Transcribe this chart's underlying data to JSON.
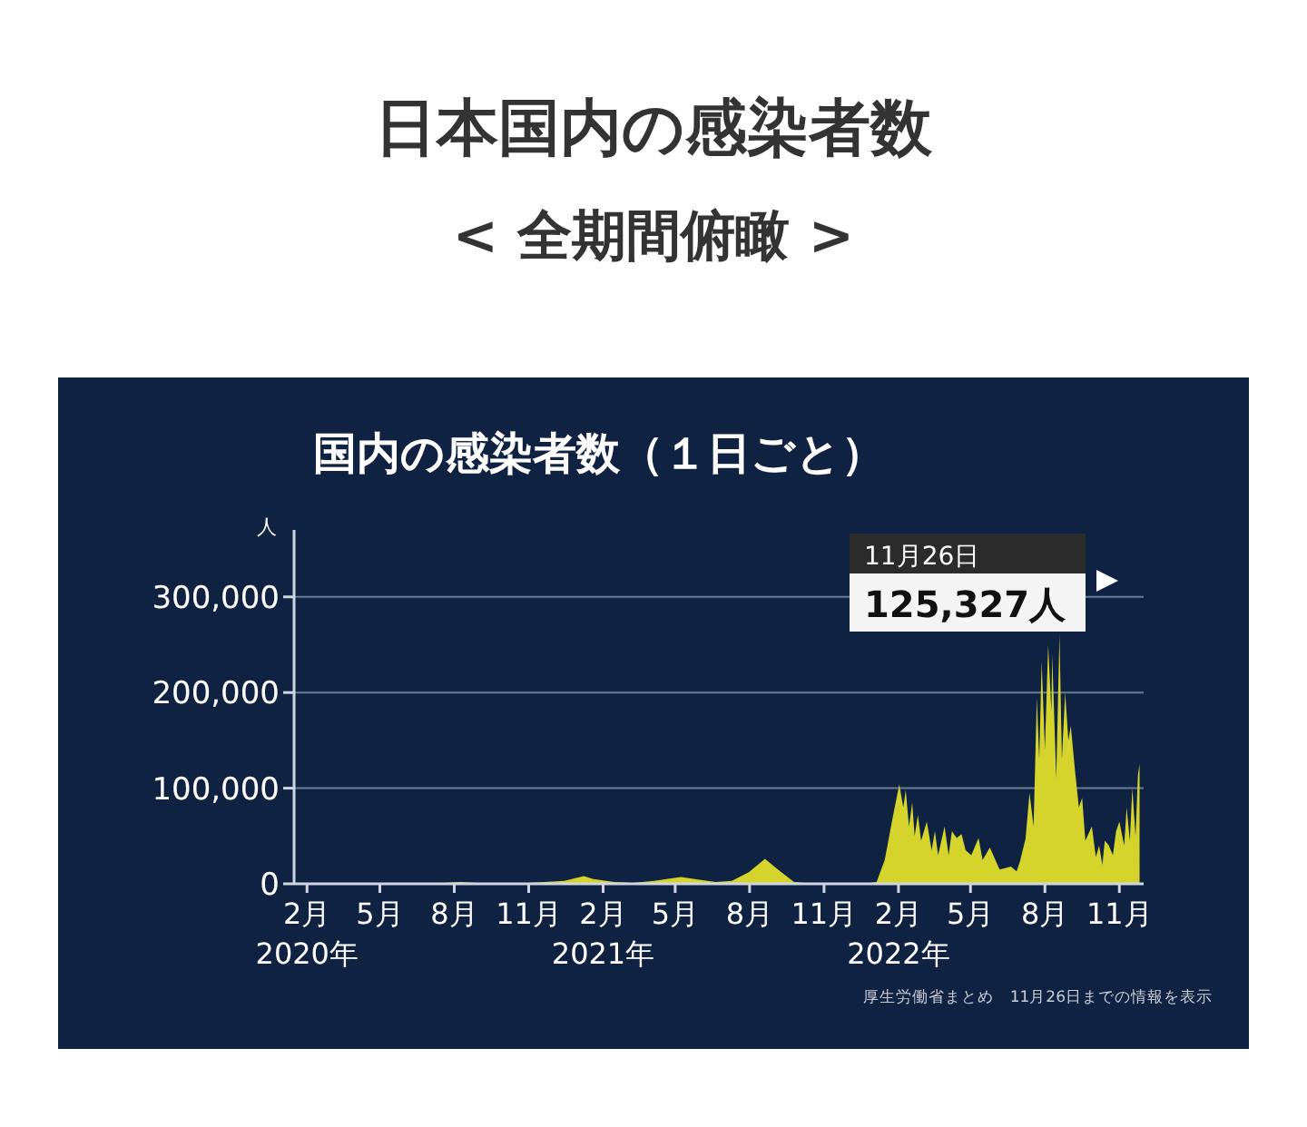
{
  "chart_data": {
    "type": "area",
    "title": "日本国内の感染者数",
    "subtitle": "< 全期間俯瞰 >",
    "ylabel": "人",
    "annotations": [
      "国内の感染者数（１日ごと）",
      "11月26日",
      "125,327人",
      "厚生労働省まとめ　11月26日までの情報を表示"
    ],
    "color": "#d4d42c",
    "grid": "y",
    "xlim": [
      "2020-01-16",
      "2022-12-01"
    ],
    "ylim": [
      0,
      370000
    ],
    "yticks": [
      {
        "value": 0,
        "label": "0"
      },
      {
        "value": 100000,
        "label": "100,000"
      },
      {
        "value": 200000,
        "label": "200,000"
      },
      {
        "value": 300000,
        "label": "300,000"
      }
    ],
    "xticks": [
      {
        "value": "2020-02-01",
        "label": "2月\n2020年"
      },
      {
        "value": "2020-05-01",
        "label": "5月"
      },
      {
        "value": "2020-08-01",
        "label": "8月"
      },
      {
        "value": "2020-11-01",
        "label": "11月"
      },
      {
        "value": "2021-02-01",
        "label": "2月\n2021年"
      },
      {
        "value": "2021-05-01",
        "label": "5月"
      },
      {
        "value": "2021-08-01",
        "label": "8月"
      },
      {
        "value": "2021-11-01",
        "label": "11月"
      },
      {
        "value": "2022-02-01",
        "label": "2月\n2022年"
      },
      {
        "value": "2022-05-01",
        "label": "5月"
      },
      {
        "value": "2022-08-01",
        "label": "8月"
      },
      {
        "value": "2022-11-01",
        "label": "11月"
      }
    ],
    "x": [
      "2020-01-16",
      "2020-03-31",
      "2020-04-11",
      "2020-05-15",
      "2020-06-30",
      "2020-08-07",
      "2020-09-20",
      "2020-11-01",
      "2020-11-20",
      "2020-12-15",
      "2021-01-08",
      "2021-01-20",
      "2021-02-15",
      "2021-03-10",
      "2021-04-05",
      "2021-05-08",
      "2021-05-25",
      "2021-06-20",
      "2021-07-10",
      "2021-07-31",
      "2021-08-20",
      "2021-09-05",
      "2021-09-25",
      "2021-10-20",
      "2021-12-20",
      "2022-01-05",
      "2022-01-15",
      "2022-01-25",
      "2022-02-02",
      "2022-02-07",
      "2022-02-10",
      "2022-02-14",
      "2022-02-18",
      "2022-02-21",
      "2022-02-25",
      "2022-03-01",
      "2022-03-08",
      "2022-03-14",
      "2022-03-18",
      "2022-03-22",
      "2022-03-30",
      "2022-04-04",
      "2022-04-08",
      "2022-04-14",
      "2022-04-20",
      "2022-04-25",
      "2022-05-02",
      "2022-05-11",
      "2022-05-16",
      "2022-05-25",
      "2022-06-06",
      "2022-06-20",
      "2022-06-27",
      "2022-07-01",
      "2022-07-08",
      "2022-07-13",
      "2022-07-18",
      "2022-07-22",
      "2022-07-25",
      "2022-07-28",
      "2022-08-01",
      "2022-08-05",
      "2022-08-09",
      "2022-08-10",
      "2022-08-15",
      "2022-08-19",
      "2022-08-22",
      "2022-08-26",
      "2022-08-30",
      "2022-09-02",
      "2022-09-07",
      "2022-09-12",
      "2022-09-16",
      "2022-09-20",
      "2022-09-28",
      "2022-10-03",
      "2022-10-07",
      "2022-10-11",
      "2022-10-14",
      "2022-10-19",
      "2022-10-24",
      "2022-10-28",
      "2022-11-01",
      "2022-11-07",
      "2022-11-10",
      "2022-11-14",
      "2022-11-17",
      "2022-11-21",
      "2022-11-24",
      "2022-11-26"
    ],
    "values": [
      0,
      0,
      1000,
      0,
      0,
      2000,
      0,
      1000,
      2000,
      3000,
      8000,
      5000,
      2000,
      1000,
      3000,
      7000,
      5000,
      2000,
      3000,
      12000,
      26000,
      15000,
      2000,
      0,
      0,
      2000,
      25000,
      70000,
      104000,
      80000,
      98000,
      60000,
      85000,
      50000,
      72000,
      45000,
      65000,
      35000,
      55000,
      30000,
      60000,
      30000,
      55000,
      48000,
      52000,
      35000,
      30000,
      48000,
      25000,
      38000,
      15000,
      18000,
      13000,
      23000,
      47000,
      95000,
      60000,
      195000,
      130000,
      233000,
      140000,
      250000,
      180000,
      240000,
      110000,
      261000,
      130000,
      200000,
      150000,
      165000,
      120000,
      80000,
      90000,
      45000,
      60000,
      28000,
      40000,
      20000,
      45000,
      40000,
      30000,
      55000,
      65000,
      40000,
      80000,
      45000,
      100000,
      50000,
      114000,
      125327
    ]
  }
}
